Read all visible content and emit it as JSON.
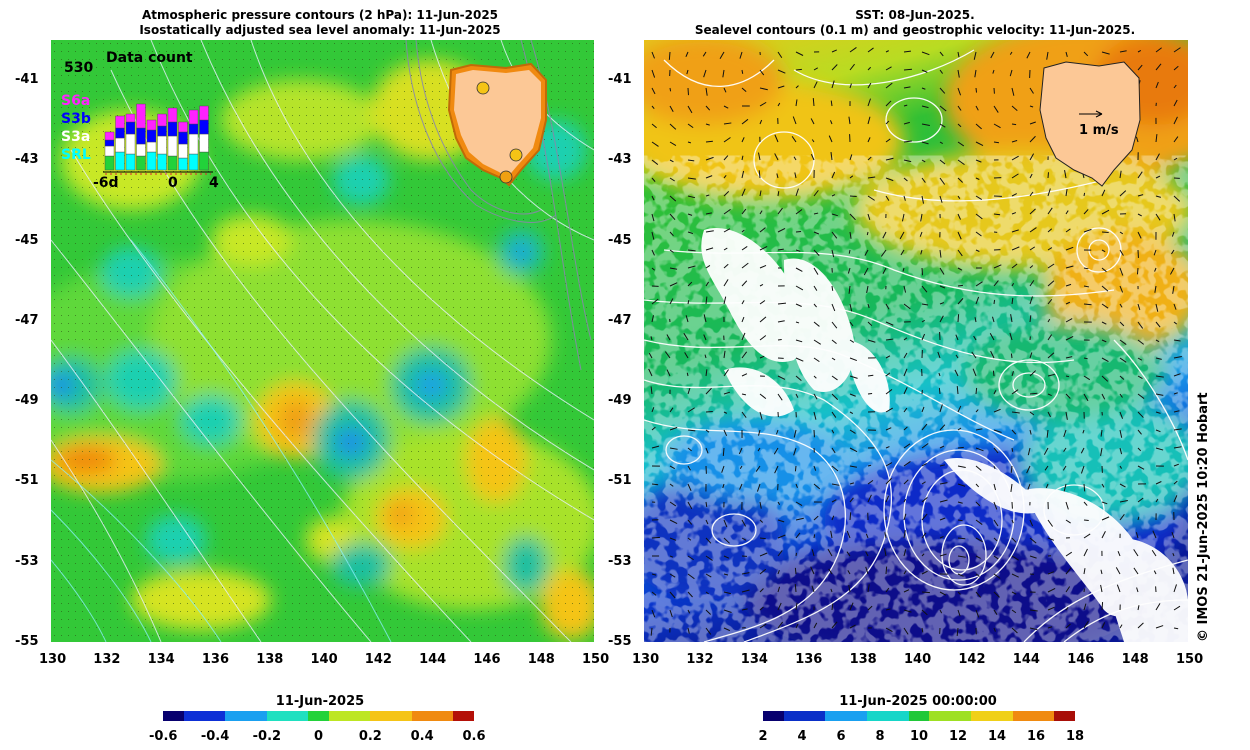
{
  "left_panel": {
    "title_line1": "Atmospheric pressure contours (2 hPa): 11-Jun-2025",
    "title_line2": "Isostatically adjusted sea level anomaly: 11-Jun-2025",
    "colorbar_title": "11-Jun-2025",
    "colorbar_ticks": [
      "-0.6",
      "-0.4",
      "-0.2",
      "0",
      "0.2",
      "0.4",
      "0.6"
    ],
    "inset": {
      "title": "Data count",
      "max_label": "530",
      "legend": [
        "S6a",
        "S3b",
        "S3a",
        "SRL"
      ],
      "axis_labels": [
        "-6d",
        "0",
        "4"
      ]
    }
  },
  "right_panel": {
    "title_line1": "SST: 08-Jun-2025.",
    "title_line2": "Sealevel contours (0.1 m) and geostrophic velocity: 11-Jun-2025.",
    "colorbar_title": "11-Jun-2025 00:00:00",
    "colorbar_ticks": [
      "2",
      "4",
      "6",
      "8",
      "10",
      "12",
      "14",
      "16",
      "18"
    ],
    "velocity_scale_label": "1 m/s"
  },
  "axes": {
    "lat_ticks": [
      "-41",
      "-43",
      "-45",
      "-47",
      "-49",
      "-51",
      "-53",
      "-55"
    ],
    "lon_ticks": [
      "130",
      "132",
      "134",
      "136",
      "138",
      "140",
      "142",
      "144",
      "146",
      "148",
      "150"
    ]
  },
  "copyright": "© IMOS 21-Jun-2025 10:20 Hobart",
  "colors": {
    "ssla_scale": [
      "#08006e",
      "#0d2fd6",
      "#1aa0f0",
      "#1fe0c0",
      "#22d23a",
      "#bde622",
      "#f5c416",
      "#f08a10",
      "#b41008"
    ],
    "sst_scale": [
      "#08006e",
      "#0a2fc8",
      "#19a0f0",
      "#16d6c8",
      "#20c838",
      "#9ee022",
      "#f0d018",
      "#f08a10",
      "#a80e08"
    ],
    "land": "#fcc896",
    "inset_bars": {
      "S6a": "#ff22ff",
      "S3b": "#0000ff",
      "S3a": "#ffffff",
      "SRL": "#00ffff"
    }
  }
}
